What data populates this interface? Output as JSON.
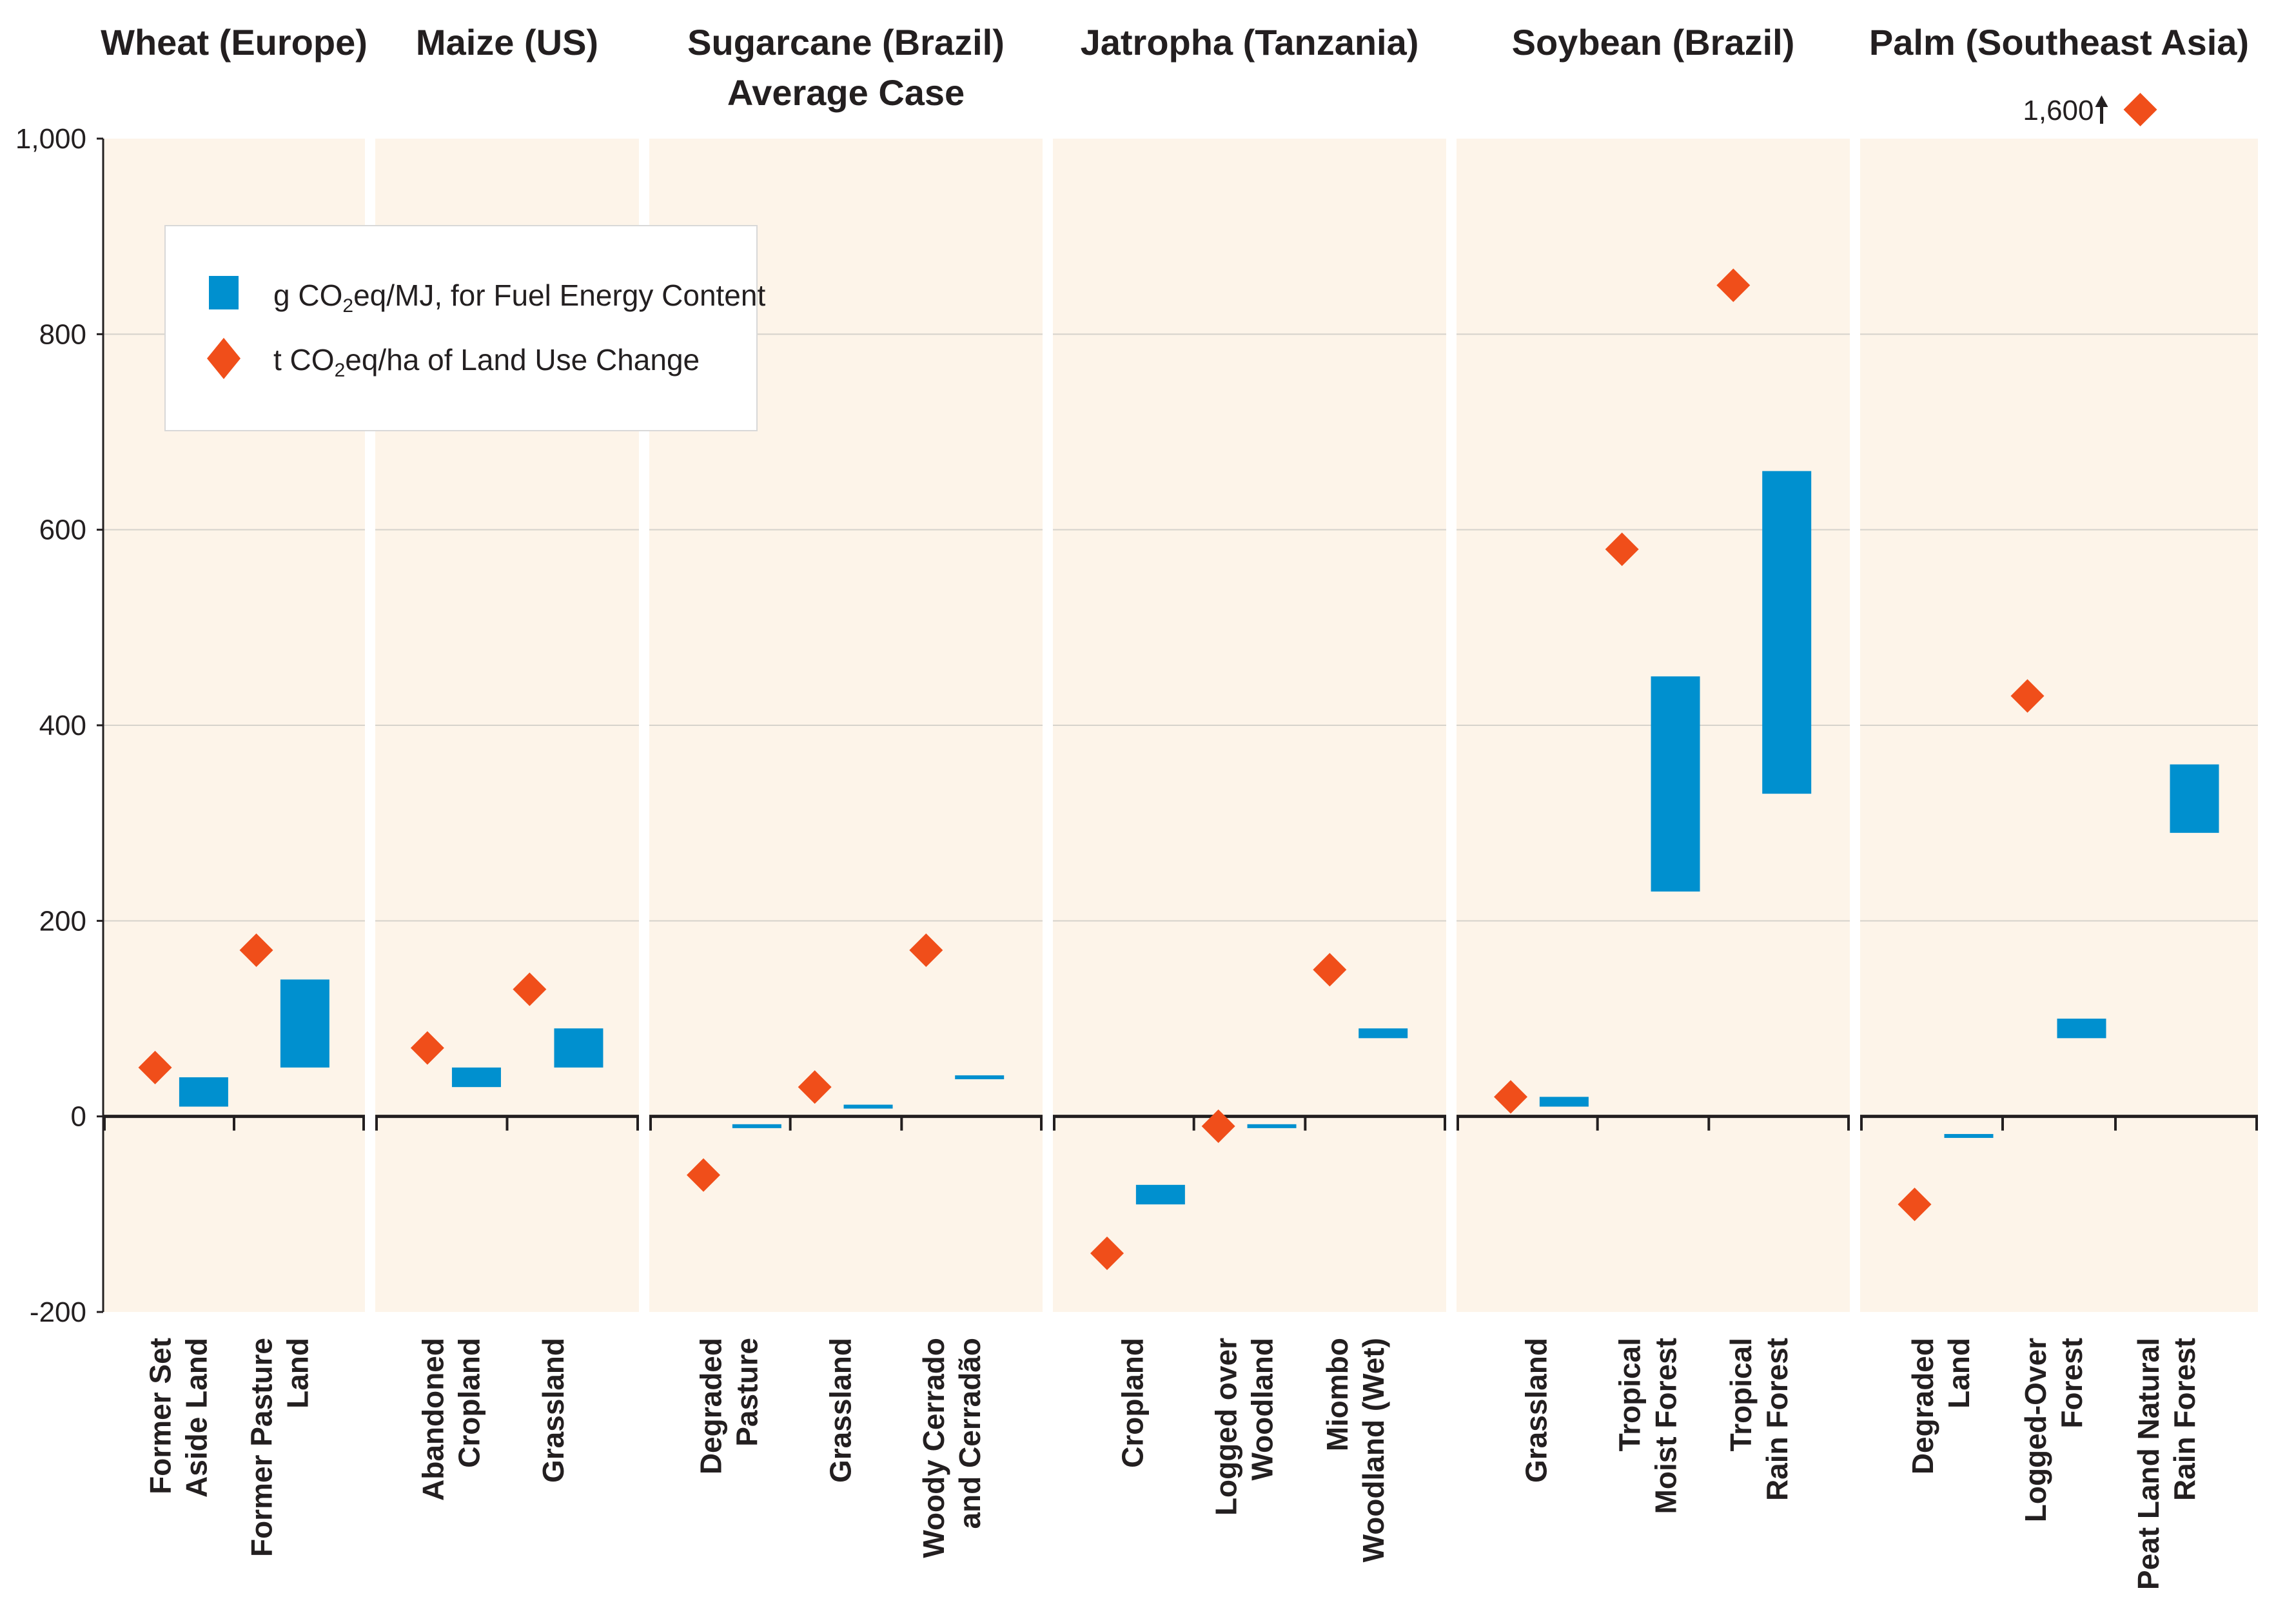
{
  "chart_data": {
    "type": "range-bar-scatter",
    "y_axis": {
      "min": -200,
      "max": 1000,
      "ticks": [
        {
          "value": 1000,
          "label": "1,000"
        },
        {
          "value": 800,
          "label": "800"
        },
        {
          "value": 600,
          "label": "600"
        },
        {
          "value": 400,
          "label": "400"
        },
        {
          "value": 200,
          "label": "200"
        },
        {
          "value": 0,
          "label": "0"
        },
        {
          "value": -200,
          "label": "-200"
        }
      ],
      "grid": true
    },
    "legend": {
      "placement": "top-left",
      "entries": [
        {
          "name": "bars",
          "marker": "square",
          "color": "#0090cf",
          "text_pre": "g CO",
          "text_sub": "2",
          "text_post": "eq/MJ, for Fuel Energy Content"
        },
        {
          "name": "diamonds",
          "marker": "diamond",
          "color": "#f04e1a",
          "text_pre": "t CO",
          "text_sub": "2",
          "text_post": "eq/ha of Land Use Change"
        }
      ]
    },
    "colors": {
      "panel_bg": "#fdf4e9",
      "bar": "#0090cf",
      "diamond": "#f04e1a",
      "grid": "#d6d2cc",
      "axis": "#231f20"
    },
    "groups": [
      {
        "title_lines": [
          "Wheat (Europe)"
        ],
        "categories": [
          {
            "label_lines": [
              "Former Set",
              "Aside Land"
            ],
            "bar": [
              10,
              40
            ],
            "diamond": 50
          },
          {
            "label_lines": [
              "Former Pasture",
              "Land"
            ],
            "bar": [
              50,
              140
            ],
            "diamond": 170
          }
        ]
      },
      {
        "title_lines": [
          "Maize (US)"
        ],
        "categories": [
          {
            "label_lines": [
              "Abandoned",
              "Cropland"
            ],
            "bar": [
              30,
              50
            ],
            "diamond": 70
          },
          {
            "label_lines": [
              "Grassland"
            ],
            "bar": [
              50,
              90
            ],
            "diamond": 130
          }
        ]
      },
      {
        "title_lines": [
          "Sugarcane (Brazil)",
          "Average Case"
        ],
        "categories": [
          {
            "label_lines": [
              "Degraded",
              "Pasture"
            ],
            "bar": [
              -12,
              -8
            ],
            "diamond": -60
          },
          {
            "label_lines": [
              "Grassland"
            ],
            "bar": [
              8,
              12
            ],
            "diamond": 30
          },
          {
            "label_lines": [
              "Woody Cerrado",
              "and Cerradão"
            ],
            "bar": [
              38,
              42
            ],
            "diamond": 170
          }
        ]
      },
      {
        "title_lines": [
          "Jatropha (Tanzania)"
        ],
        "categories": [
          {
            "label_lines": [
              "Cropland"
            ],
            "bar": [
              -90,
              -70
            ],
            "diamond": -140
          },
          {
            "label_lines": [
              "Logged over",
              "Woodland"
            ],
            "bar": [
              -12,
              -8
            ],
            "diamond": -10
          },
          {
            "label_lines": [
              "Miombo",
              "Woodland (Wet)"
            ],
            "bar": [
              80,
              90
            ],
            "diamond": 150
          }
        ]
      },
      {
        "title_lines": [
          "Soybean (Brazil)"
        ],
        "categories": [
          {
            "label_lines": [
              "Grassland"
            ],
            "bar": [
              10,
              20
            ],
            "diamond": 20
          },
          {
            "label_lines": [
              "Tropical",
              "Moist Forest"
            ],
            "bar": [
              230,
              450
            ],
            "diamond": 580
          },
          {
            "label_lines": [
              "Tropical",
              "Rain Forest"
            ],
            "bar": [
              330,
              660
            ],
            "diamond": 850
          }
        ]
      },
      {
        "title_lines": [
          "Palm (Southeast Asia)"
        ],
        "categories": [
          {
            "label_lines": [
              "Degraded",
              "Land"
            ],
            "bar": [
              -22,
              -18
            ],
            "diamond": -90
          },
          {
            "label_lines": [
              "Logged-Over",
              "Forest"
            ],
            "bar": [
              80,
              100
            ],
            "diamond": 430
          },
          {
            "label_lines": [
              "Peat Land Natural",
              "Rain Forest"
            ],
            "bar": [
              290,
              360
            ],
            "diamond": 1600,
            "diamond_label": "1,600"
          }
        ]
      }
    ]
  }
}
